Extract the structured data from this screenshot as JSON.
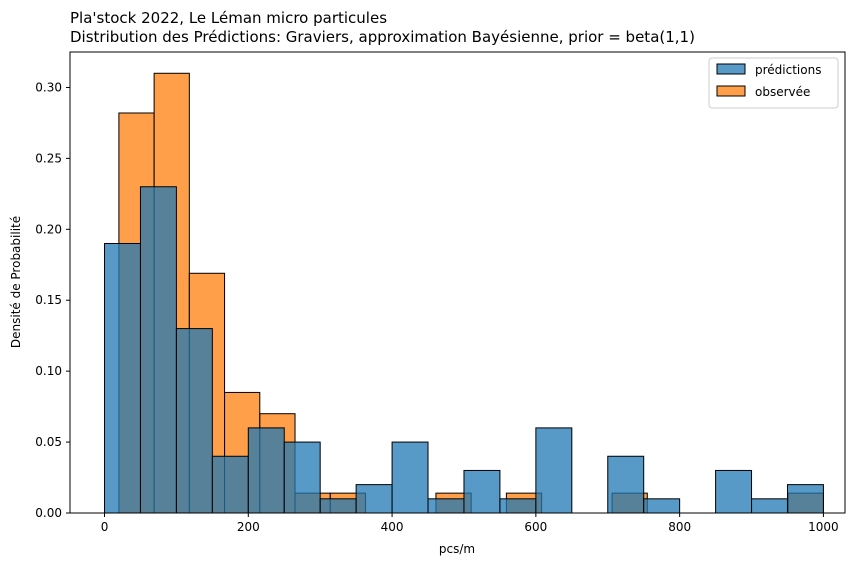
{
  "chart_data": {
    "type": "histogram",
    "title_line1": "Pla'stock 2022, Le Léman micro particules",
    "title_line2": "Distribution des Prédictions: Graviers,  approximation Bayésienne, prior = beta(1,1)",
    "xlabel": "pcs/m",
    "ylabel": "Densité de Probabilité",
    "xlim": [
      -48,
      1030
    ],
    "ylim": [
      0,
      0.325
    ],
    "xticks": [
      0,
      200,
      400,
      600,
      800,
      1000
    ],
    "yticks": [
      0.0,
      0.05,
      0.1,
      0.15,
      0.2,
      0.25,
      0.3
    ],
    "legend_position": "top-right",
    "series": [
      {
        "name": "observée",
        "color": "#ff7f0e",
        "bins": [
          {
            "x0": 20,
            "x1": 69,
            "value": 0.282
          },
          {
            "x0": 69,
            "x1": 118,
            "value": 0.31
          },
          {
            "x0": 118,
            "x1": 167,
            "value": 0.169
          },
          {
            "x0": 167,
            "x1": 216,
            "value": 0.085
          },
          {
            "x0": 216,
            "x1": 265,
            "value": 0.07
          },
          {
            "x0": 265,
            "x1": 314,
            "value": 0.014
          },
          {
            "x0": 314,
            "x1": 363,
            "value": 0.014
          },
          {
            "x0": 461,
            "x1": 510,
            "value": 0.014
          },
          {
            "x0": 559,
            "x1": 608,
            "value": 0.014
          },
          {
            "x0": 706,
            "x1": 755,
            "value": 0.014
          },
          {
            "x0": 951,
            "x1": 1000,
            "value": 0.014
          }
        ]
      },
      {
        "name": "prédictions",
        "color": "#1f77b4",
        "bins": [
          {
            "x0": 0,
            "x1": 50,
            "value": 0.19
          },
          {
            "x0": 50,
            "x1": 100,
            "value": 0.23
          },
          {
            "x0": 100,
            "x1": 150,
            "value": 0.13
          },
          {
            "x0": 150,
            "x1": 200,
            "value": 0.04
          },
          {
            "x0": 200,
            "x1": 250,
            "value": 0.06
          },
          {
            "x0": 250,
            "x1": 300,
            "value": 0.05
          },
          {
            "x0": 300,
            "x1": 350,
            "value": 0.01
          },
          {
            "x0": 350,
            "x1": 400,
            "value": 0.02
          },
          {
            "x0": 400,
            "x1": 450,
            "value": 0.05
          },
          {
            "x0": 450,
            "x1": 500,
            "value": 0.01
          },
          {
            "x0": 500,
            "x1": 550,
            "value": 0.03
          },
          {
            "x0": 550,
            "x1": 600,
            "value": 0.01
          },
          {
            "x0": 600,
            "x1": 650,
            "value": 0.06
          },
          {
            "x0": 700,
            "x1": 750,
            "value": 0.04
          },
          {
            "x0": 750,
            "x1": 800,
            "value": 0.01
          },
          {
            "x0": 850,
            "x1": 900,
            "value": 0.03
          },
          {
            "x0": 900,
            "x1": 950,
            "value": 0.01
          },
          {
            "x0": 950,
            "x1": 1000,
            "value": 0.02
          }
        ]
      }
    ],
    "legend": [
      "prédictions",
      "observée"
    ]
  }
}
